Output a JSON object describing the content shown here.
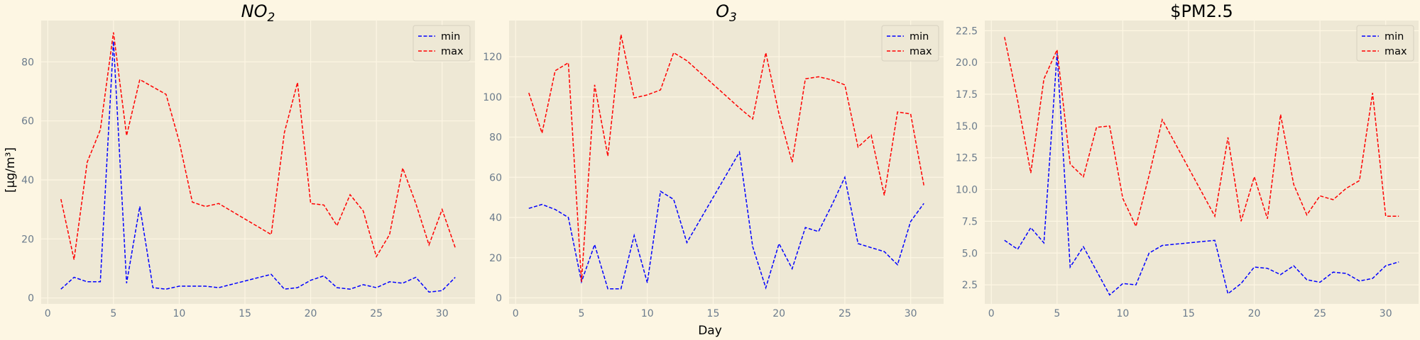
{
  "figure": {
    "ylabel": "[µg/m³]",
    "xlabel": "Day"
  },
  "chart_data": [
    {
      "type": "line",
      "title": "NO2",
      "title_main": "NO",
      "title_sub": "2",
      "title_italic": true,
      "ylim": [
        -2,
        94
      ],
      "xlim": [
        -0.5,
        32.5
      ],
      "xticks": [
        0,
        5,
        10,
        15,
        20,
        25,
        30
      ],
      "yticks": [
        0,
        20,
        40,
        60,
        80
      ],
      "grid": true,
      "legend_position": "top-right",
      "series": [
        {
          "name": "min",
          "color": "#0000ff",
          "x": [
            1,
            2,
            3,
            4,
            5,
            6,
            7,
            8,
            9,
            10,
            11,
            12,
            13,
            17,
            18,
            19,
            20,
            21,
            22,
            23,
            24,
            25,
            26,
            27,
            28,
            29,
            30,
            31
          ],
          "y": [
            3,
            7,
            5.5,
            5.5,
            87,
            5,
            31,
            3.5,
            3,
            4,
            4,
            4,
            3.5,
            8,
            3,
            3.5,
            6,
            7.5,
            3.5,
            3,
            4.5,
            3.5,
            5.5,
            5,
            7,
            2,
            2.5,
            7
          ]
        },
        {
          "name": "max",
          "color": "#ff0000",
          "x": [
            1,
            2,
            3,
            4,
            5,
            6,
            7,
            8,
            9,
            10,
            11,
            12,
            13,
            17,
            18,
            19,
            20,
            21,
            22,
            23,
            24,
            25,
            26,
            27,
            28,
            29,
            30,
            31
          ],
          "y": [
            33.5,
            13,
            46,
            57,
            90,
            55,
            74,
            71.5,
            69,
            53,
            32.5,
            31,
            32,
            21.5,
            56,
            73,
            32,
            31.5,
            24.5,
            35,
            29.5,
            14,
            21.5,
            44,
            32,
            18,
            30,
            17
          ]
        }
      ]
    },
    {
      "type": "line",
      "title": "O3",
      "title_main": "O",
      "title_sub": "3",
      "title_italic": true,
      "ylim": [
        -3,
        138
      ],
      "xlim": [
        -0.5,
        32.5
      ],
      "xticks": [
        0,
        5,
        10,
        15,
        20,
        25,
        30
      ],
      "yticks": [
        0,
        20,
        40,
        60,
        80,
        100,
        120
      ],
      "grid": true,
      "legend_position": "top-right",
      "series": [
        {
          "name": "min",
          "color": "#0000ff",
          "x": [
            1,
            2,
            3,
            4,
            5,
            6,
            7,
            8,
            9,
            10,
            11,
            12,
            13,
            17,
            18,
            19,
            20,
            21,
            22,
            23,
            24,
            25,
            26,
            27,
            28,
            29,
            30,
            31
          ],
          "y": [
            44.5,
            46.5,
            44,
            40,
            8,
            26.5,
            4.5,
            4.5,
            31,
            7.5,
            53,
            49,
            27.5,
            72.5,
            25.5,
            5,
            27,
            14.5,
            35,
            33,
            46,
            60,
            27,
            25,
            23,
            16.5,
            38,
            47
          ]
        },
        {
          "name": "max",
          "color": "#ff0000",
          "x": [
            1,
            2,
            3,
            4,
            5,
            6,
            7,
            8,
            9,
            10,
            11,
            12,
            13,
            17,
            18,
            19,
            20,
            21,
            22,
            23,
            24,
            25,
            26,
            27,
            28,
            29,
            30,
            31
          ],
          "y": [
            102,
            82,
            113,
            117,
            8,
            106,
            70.5,
            131,
            99.5,
            101,
            103.5,
            122,
            118,
            94.5,
            89,
            122,
            91.5,
            67.5,
            109,
            110,
            108.5,
            106,
            75,
            81,
            51,
            92.5,
            91.5,
            56
          ]
        }
      ]
    },
    {
      "type": "line",
      "title": "$PM2.5",
      "title_italic": false,
      "ylim": [
        1.0,
        23.3
      ],
      "xlim": [
        -0.5,
        32.5
      ],
      "xticks": [
        0,
        5,
        10,
        15,
        20,
        25,
        30
      ],
      "yticks": [
        2.5,
        5.0,
        7.5,
        10.0,
        12.5,
        15.0,
        17.5,
        20.0,
        22.5
      ],
      "ytick_labels": [
        "2.5",
        "5.0",
        "7.5",
        "10.0",
        "12.5",
        "15.0",
        "17.5",
        "20.0",
        "22.5"
      ],
      "grid": true,
      "legend_position": "top-right",
      "series": [
        {
          "name": "min",
          "color": "#0000ff",
          "x": [
            1,
            2,
            3,
            4,
            5,
            6,
            7,
            8,
            9,
            10,
            11,
            12,
            13,
            17,
            18,
            19,
            20,
            21,
            22,
            23,
            24,
            25,
            26,
            27,
            28,
            29,
            30,
            31
          ],
          "y": [
            6,
            5.3,
            7,
            5.8,
            20.7,
            3.9,
            5.5,
            3.6,
            1.7,
            2.6,
            2.5,
            5,
            5.6,
            6,
            1.8,
            2.6,
            3.9,
            3.8,
            3.3,
            4,
            2.9,
            2.7,
            3.5,
            3.4,
            2.8,
            3,
            4,
            4.3
          ]
        },
        {
          "name": "max",
          "color": "#ff0000",
          "x": [
            1,
            2,
            3,
            4,
            5,
            6,
            7,
            8,
            9,
            10,
            11,
            12,
            13,
            17,
            18,
            19,
            20,
            21,
            22,
            23,
            24,
            25,
            26,
            27,
            28,
            29,
            30,
            31
          ],
          "y": [
            22,
            17,
            11.3,
            18.7,
            21,
            12,
            11,
            14.9,
            15,
            9.3,
            7.1,
            11.1,
            15.5,
            7.9,
            14.1,
            7.5,
            11,
            7.7,
            15.9,
            10.4,
            8,
            9.5,
            9.2,
            10.1,
            10.7,
            17.6,
            7.9,
            7.9
          ]
        }
      ]
    }
  ]
}
